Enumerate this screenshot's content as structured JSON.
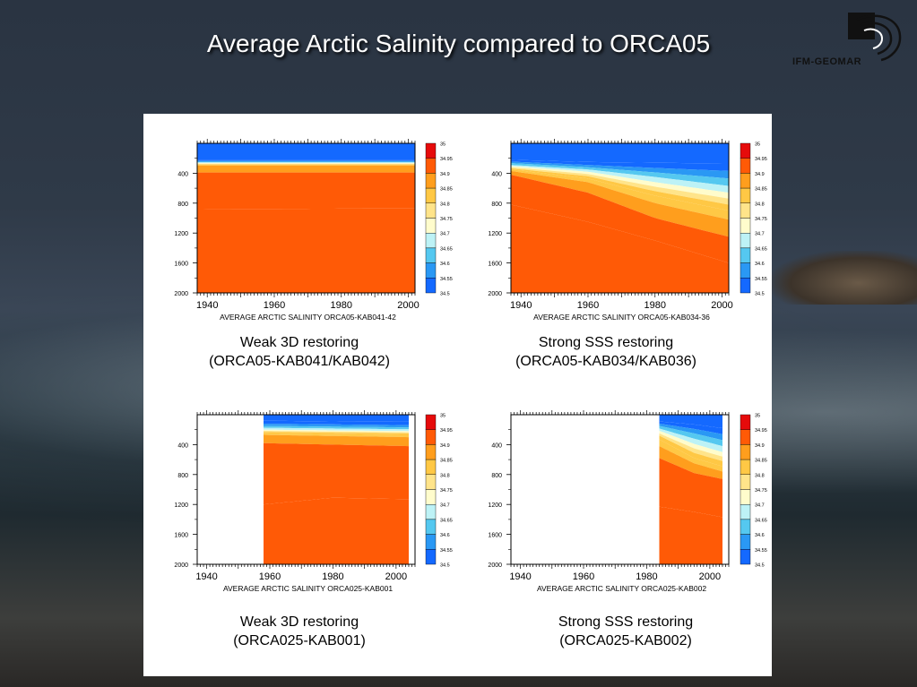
{
  "slide": {
    "title": "Average Arctic Salinity compared to ORCA05",
    "logo_text": "IFM-GEOMAR"
  },
  "colors": {
    "scale": [
      "#0a2ef0",
      "#1469ff",
      "#2a98f4",
      "#55c8f0",
      "#bdf2f6",
      "#fffccc",
      "#ffe48a",
      "#ffc845",
      "#ff9e1d",
      "#ff5a06",
      "#e60b0b"
    ]
  },
  "chart_data": [
    {
      "type": "heatmap",
      "title": "AVERAGE ARCTIC SALINITY ORCA05-KAB041-42",
      "caption_line1": "Weak 3D restoring",
      "caption_line2": "(ORCA05-KAB041/KAB042)",
      "x_ticks": [
        "1940",
        "1960",
        "1980",
        "2000"
      ],
      "y_ticks": [
        "400",
        "800",
        "1200",
        "1600",
        "2000"
      ],
      "colorbar_labels": [
        "35",
        "34.95",
        "34.9",
        "34.85",
        "34.8",
        "34.75",
        "34.7",
        "34.65",
        "34.6",
        "34.55",
        "34.5"
      ],
      "xlim": [
        1937,
        2002
      ],
      "ylim": [
        0,
        2000
      ],
      "data_start": 1937,
      "data_end": 2002,
      "profiles": [
        {
          "year": 1937,
          "depths": [
            0,
            220,
            235,
            245,
            255,
            265,
            272,
            278,
            285,
            298,
            390,
            880,
            2000
          ]
        },
        {
          "year": 2002,
          "depths": [
            0,
            220,
            235,
            245,
            255,
            265,
            272,
            278,
            285,
            298,
            390,
            870,
            2000
          ]
        }
      ]
    },
    {
      "type": "heatmap",
      "title": "AVERAGE ARCTIC SALINITY ORCA05-KAB034-36",
      "caption_line1": "Strong SSS restoring",
      "caption_line2": "(ORCA05-KAB034/KAB036)",
      "x_ticks": [
        "1940",
        "1960",
        "1980",
        "2000"
      ],
      "y_ticks": [
        "400",
        "800",
        "1200",
        "1600",
        "2000"
      ],
      "colorbar_labels": [
        "35",
        "34.95",
        "34.9",
        "34.85",
        "34.8",
        "34.75",
        "34.7",
        "34.65",
        "34.6",
        "34.55",
        "34.5"
      ],
      "xlim": [
        1937,
        2002
      ],
      "ylim": [
        0,
        2000
      ],
      "data_start": 1937,
      "data_end": 2002,
      "profiles": [
        {
          "year": 1937,
          "depths": [
            0,
            220,
            245,
            265,
            290,
            305,
            320,
            335,
            350,
            370,
            420,
            820,
            2000
          ]
        },
        {
          "year": 1960,
          "depths": [
            0,
            250,
            290,
            320,
            350,
            380,
            410,
            440,
            470,
            520,
            660,
            1050,
            2000
          ]
        },
        {
          "year": 1980,
          "depths": [
            0,
            260,
            330,
            390,
            450,
            520,
            580,
            640,
            700,
            800,
            1000,
            1300,
            2000
          ]
        },
        {
          "year": 2002,
          "depths": [
            0,
            270,
            370,
            470,
            570,
            660,
            740,
            820,
            900,
            1020,
            1250,
            1600,
            2000
          ]
        }
      ]
    },
    {
      "type": "heatmap",
      "title": "AVERAGE ARCTIC SALINITY ORCA025-KAB001",
      "caption_line1": "Weak 3D restoring",
      "caption_line2": "(ORCA025-KAB001)",
      "x_ticks": [
        "1940",
        "1960",
        "1980",
        "2000"
      ],
      "y_ticks": [
        "400",
        "800",
        "1200",
        "1600",
        "2000"
      ],
      "colorbar_labels": [
        "35",
        "34.95",
        "34.9",
        "34.85",
        "34.8",
        "34.75",
        "34.7",
        "34.65",
        "34.6",
        "34.55",
        "34.5"
      ],
      "xlim": [
        1937,
        2006
      ],
      "ylim": [
        0,
        2000
      ],
      "data_start": 1958,
      "data_end": 2004,
      "profiles": [
        {
          "year": 1958,
          "depths": [
            0,
            80,
            120,
            150,
            175,
            200,
            215,
            230,
            250,
            270,
            380,
            1200,
            2000
          ]
        },
        {
          "year": 1980,
          "depths": [
            0,
            90,
            130,
            160,
            185,
            210,
            225,
            240,
            260,
            285,
            400,
            1110,
            2000
          ]
        },
        {
          "year": 2004,
          "depths": [
            0,
            95,
            140,
            170,
            195,
            220,
            235,
            250,
            270,
            300,
            420,
            1130,
            2000
          ]
        }
      ]
    },
    {
      "type": "heatmap",
      "title": "AVERAGE ARCTIC SALINITY ORCA025-KAB002",
      "caption_line1": "Strong SSS restoring",
      "caption_line2": "(ORCA025-KAB002)",
      "x_ticks": [
        "1940",
        "1960",
        "1980",
        "2000"
      ],
      "y_ticks": [
        "400",
        "800",
        "1200",
        "1600",
        "2000"
      ],
      "colorbar_labels": [
        "35",
        "34.95",
        "34.9",
        "34.85",
        "34.8",
        "34.75",
        "34.7",
        "34.65",
        "34.6",
        "34.55",
        "34.5"
      ],
      "xlim": [
        1937,
        2006
      ],
      "ylim": [
        0,
        2000
      ],
      "data_start": 1984,
      "data_end": 2004,
      "profiles": [
        {
          "year": 1984,
          "depths": [
            0,
            90,
            120,
            150,
            185,
            215,
            250,
            280,
            330,
            420,
            580,
            1230,
            2000
          ]
        },
        {
          "year": 1995,
          "depths": [
            0,
            130,
            190,
            250,
            320,
            390,
            450,
            510,
            580,
            650,
            780,
            1300,
            2000
          ]
        },
        {
          "year": 2004,
          "depths": [
            0,
            180,
            260,
            340,
            420,
            500,
            560,
            620,
            690,
            760,
            860,
            1370,
            2000
          ]
        }
      ]
    }
  ]
}
